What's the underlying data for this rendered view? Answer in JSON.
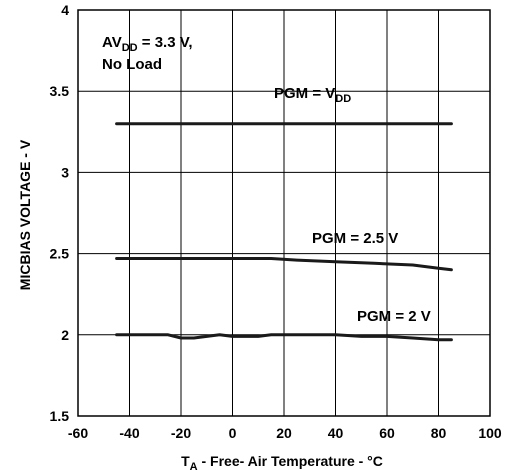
{
  "chart_data": {
    "type": "line",
    "xlabel": {
      "main": "T",
      "sub": "A",
      "rest": " - Free- Air Temperature - °C"
    },
    "ylabel": "MICBIAS VOLTAGE - V",
    "xlim": [
      -60,
      100
    ],
    "ylim": [
      1.5,
      4
    ],
    "xticks": [
      -60,
      -40,
      -20,
      0,
      20,
      40,
      60,
      80,
      100
    ],
    "yticks": [
      1.5,
      2,
      2.5,
      3,
      3.5,
      4
    ],
    "grid": true,
    "annotations": {
      "condition_line1": {
        "main": "AV",
        "sub": "DD",
        "rest": " = 3.3 V,"
      },
      "condition_line2": "No Load"
    },
    "series": [
      {
        "name": "PGM = VDD",
        "label": {
          "main": "PGM = V",
          "sub": "DD"
        },
        "x": [
          -45,
          -30,
          -15,
          0,
          15,
          30,
          45,
          60,
          75,
          85
        ],
        "y": [
          3.3,
          3.3,
          3.3,
          3.3,
          3.3,
          3.3,
          3.3,
          3.3,
          3.3,
          3.3
        ]
      },
      {
        "name": "PGM = 2.5 V",
        "label": {
          "main": "PGM = 2.5 V",
          "sub": ""
        },
        "x": [
          -45,
          -30,
          -15,
          0,
          15,
          25,
          40,
          55,
          70,
          80,
          85
        ],
        "y": [
          2.47,
          2.47,
          2.47,
          2.47,
          2.47,
          2.46,
          2.45,
          2.44,
          2.43,
          2.41,
          2.4
        ]
      },
      {
        "name": "PGM = 2 V",
        "label": {
          "main": "PGM = 2 V",
          "sub": ""
        },
        "x": [
          -45,
          -35,
          -25,
          -20,
          -15,
          -5,
          0,
          5,
          10,
          15,
          25,
          40,
          50,
          60,
          70,
          80,
          85
        ],
        "y": [
          2.0,
          2.0,
          2.0,
          1.98,
          1.98,
          2.0,
          1.99,
          1.99,
          1.99,
          2.0,
          2.0,
          2.0,
          1.99,
          1.99,
          1.98,
          1.97,
          1.97
        ]
      }
    ]
  }
}
